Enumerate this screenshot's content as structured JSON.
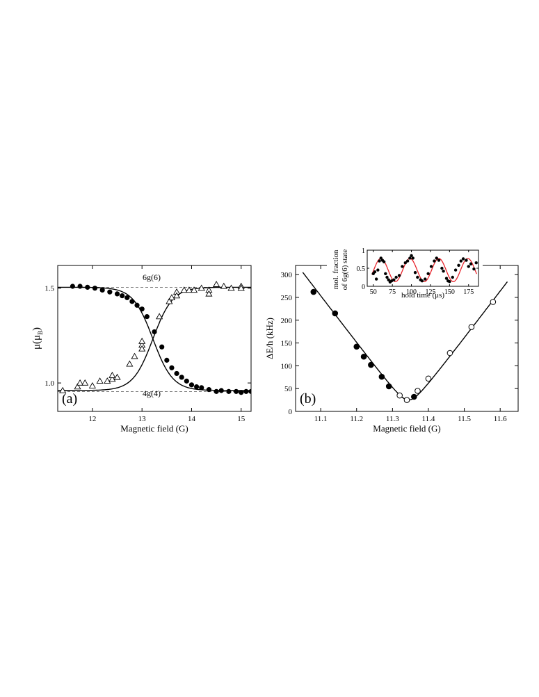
{
  "chart_data": [
    {
      "type": "scatter",
      "panel_label": "(a)",
      "xlabel": "Magnetic field (G)",
      "ylabel_base": "μ(μ",
      "ylabel_sub": "B",
      "ylabel_close": ")",
      "xlim": [
        11.3,
        15.2
      ],
      "ylim": [
        0.85,
        1.62
      ],
      "xticks": [
        "12",
        "13",
        "14",
        "15"
      ],
      "xtick_values": [
        12,
        13,
        14,
        15
      ],
      "yticks": [
        "1.0",
        "1.5"
      ],
      "ytick_values": [
        1.0,
        1.5
      ],
      "annotations": {
        "upper": "6g(6)",
        "lower": "4g(4)"
      },
      "dashed_levels": [
        1.505,
        0.955
      ],
      "series": [
        {
          "marker": "filled-circle",
          "points": [
            [
              11.6,
              1.51
            ],
            [
              11.75,
              1.51
            ],
            [
              11.9,
              1.505
            ],
            [
              12.05,
              1.5
            ],
            [
              12.2,
              1.49
            ],
            [
              12.35,
              1.48
            ],
            [
              12.5,
              1.47
            ],
            [
              12.6,
              1.46
            ],
            [
              12.7,
              1.45
            ],
            [
              12.8,
              1.43
            ],
            [
              12.9,
              1.41
            ],
            [
              13.0,
              1.39
            ],
            [
              13.1,
              1.35
            ],
            [
              13.25,
              1.27
            ],
            [
              13.4,
              1.19
            ],
            [
              13.5,
              1.12
            ],
            [
              13.6,
              1.08
            ],
            [
              13.7,
              1.05
            ],
            [
              13.8,
              1.03
            ],
            [
              13.9,
              1.01
            ],
            [
              14.0,
              0.99
            ],
            [
              14.1,
              0.98
            ],
            [
              14.2,
              0.975
            ],
            [
              14.35,
              0.965
            ],
            [
              14.5,
              0.955
            ],
            [
              14.6,
              0.96
            ],
            [
              14.75,
              0.955
            ],
            [
              14.9,
              0.955
            ],
            [
              15.0,
              0.95
            ],
            [
              15.1,
              0.955
            ],
            [
              15.2,
              0.955
            ]
          ]
        },
        {
          "marker": "open-triangle",
          "points": [
            [
              11.4,
              0.96
            ],
            [
              11.7,
              0.98
            ],
            [
              11.75,
              1.0
            ],
            [
              11.85,
              1.0
            ],
            [
              12.0,
              0.985
            ],
            [
              12.15,
              1.01
            ],
            [
              12.3,
              1.01
            ],
            [
              12.4,
              1.02
            ],
            [
              12.4,
              1.04
            ],
            [
              12.5,
              1.03
            ],
            [
              12.75,
              1.1
            ],
            [
              12.85,
              1.14
            ],
            [
              13.0,
              1.2
            ],
            [
              13.0,
              1.22
            ],
            [
              13.0,
              1.18
            ],
            [
              13.35,
              1.35
            ],
            [
              13.55,
              1.43
            ],
            [
              13.6,
              1.45
            ],
            [
              13.7,
              1.48
            ],
            [
              13.7,
              1.46
            ],
            [
              13.85,
              1.49
            ],
            [
              13.95,
              1.49
            ],
            [
              14.05,
              1.49
            ],
            [
              14.2,
              1.5
            ],
            [
              14.35,
              1.49
            ],
            [
              14.35,
              1.47
            ],
            [
              14.5,
              1.52
            ],
            [
              14.65,
              1.51
            ],
            [
              14.8,
              1.5
            ],
            [
              15.0,
              1.51
            ],
            [
              15.0,
              1.5
            ]
          ]
        }
      ],
      "fit_curves": [
        {
          "upper": 1.505,
          "lower": 0.96,
          "center": 13.22,
          "width": 0.2,
          "direction": "down"
        },
        {
          "upper": 1.505,
          "lower": 0.96,
          "center": 13.22,
          "width": 0.2,
          "direction": "up"
        }
      ]
    },
    {
      "type": "scatter",
      "panel_label": "(b)",
      "xlabel": "Magnetic field (G)",
      "ylabel": "ΔE/h (kHz)",
      "xlim": [
        11.03,
        11.65
      ],
      "ylim": [
        0,
        320
      ],
      "xticks": [
        "11.1",
        "11.2",
        "11.3",
        "11.4",
        "11.5",
        "11.6"
      ],
      "xtick_values": [
        11.1,
        11.2,
        11.3,
        11.4,
        11.5,
        11.6
      ],
      "yticks": [
        "0",
        "50",
        "100",
        "150",
        "200",
        "250",
        "300"
      ],
      "ytick_values": [
        0,
        50,
        100,
        150,
        200,
        250,
        300
      ],
      "series": [
        {
          "marker": "filled-circle",
          "points": [
            [
              11.08,
              262
            ],
            [
              11.14,
              215
            ],
            [
              11.2,
              142
            ],
            [
              11.22,
              120
            ],
            [
              11.24,
              102
            ],
            [
              11.27,
              76
            ],
            [
              11.29,
              55
            ],
            [
              11.36,
              32
            ]
          ]
        },
        {
          "marker": "open-circle",
          "points": [
            [
              11.32,
              35
            ],
            [
              11.34,
              25
            ],
            [
              11.37,
              45
            ],
            [
              11.4,
              72
            ],
            [
              11.46,
              128
            ],
            [
              11.52,
              185
            ],
            [
              11.58,
              240
            ]
          ]
        }
      ],
      "fit_curve": {
        "min_x": 11.345,
        "min_y": 25,
        "left_slope": -1030,
        "right_slope": 1030
      },
      "inset": {
        "type": "scatter",
        "ylabel_line1": "mol. fraction",
        "ylabel_line2": "of 6g(6) state",
        "xlabel": "hold time (μs)",
        "xlim": [
          42,
          188
        ],
        "ylim": [
          0,
          1
        ],
        "xticks": [
          "50",
          "75",
          "100",
          "125",
          "150",
          "175"
        ],
        "xtick_values": [
          50,
          75,
          100,
          125,
          150,
          175
        ],
        "yticks": [
          "0",
          "0.5",
          "1"
        ],
        "ytick_values": [
          0,
          0.5,
          1
        ],
        "fit_color": "#e8232b",
        "fit": {
          "offset": 0.45,
          "amplitude": 0.32,
          "period": 38,
          "peak_at": 60
        },
        "points": [
          [
            50,
            0.35
          ],
          [
            52,
            0.4
          ],
          [
            54,
            0.2
          ],
          [
            56,
            0.45
          ],
          [
            58,
            0.7
          ],
          [
            60,
            0.78
          ],
          [
            62,
            0.72
          ],
          [
            64,
            0.68
          ],
          [
            66,
            0.35
          ],
          [
            68,
            0.25
          ],
          [
            70,
            0.18
          ],
          [
            72,
            0.12
          ],
          [
            74,
            0.15
          ],
          [
            77,
            0.18
          ],
          [
            80,
            0.25
          ],
          [
            84,
            0.3
          ],
          [
            88,
            0.55
          ],
          [
            92,
            0.65
          ],
          [
            95,
            0.7
          ],
          [
            98,
            0.78
          ],
          [
            100,
            0.85
          ],
          [
            102,
            0.78
          ],
          [
            105,
            0.38
          ],
          [
            108,
            0.25
          ],
          [
            112,
            0.18
          ],
          [
            114,
            0.15
          ],
          [
            118,
            0.2
          ],
          [
            122,
            0.35
          ],
          [
            126,
            0.55
          ],
          [
            130,
            0.7
          ],
          [
            133,
            0.78
          ],
          [
            136,
            0.72
          ],
          [
            140,
            0.5
          ],
          [
            142,
            0.42
          ],
          [
            146,
            0.22
          ],
          [
            148,
            0.15
          ],
          [
            150,
            0.13
          ],
          [
            154,
            0.25
          ],
          [
            158,
            0.45
          ],
          [
            162,
            0.58
          ],
          [
            165,
            0.7
          ],
          [
            168,
            0.76
          ],
          [
            172,
            0.72
          ],
          [
            175,
            0.55
          ],
          [
            178,
            0.62
          ],
          [
            182,
            0.48
          ],
          [
            185,
            0.65
          ]
        ]
      }
    }
  ]
}
